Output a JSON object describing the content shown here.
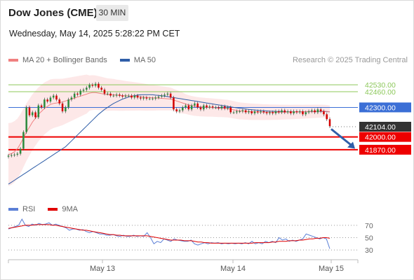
{
  "header": {
    "title": "Dow Jones (CME)",
    "timeframe": "30 MIN",
    "datetime": "Wednesday, May 14, 2025 5:28:22 PM CET"
  },
  "legend": {
    "ma20_label": "MA 20 + Bollinger Bands",
    "ma50_label": "MA 50",
    "credit": "Research © 2025 Trading Central"
  },
  "rsi_legend": {
    "rsi_label": "RSI",
    "ma9_label": "9MA"
  },
  "colors": {
    "ma20": "#f08080",
    "ma50": "#2f5ea8",
    "bollinger_fill": "#fde2e2",
    "green_level": "#8cc85a",
    "blue_level": "#3b6fd6",
    "red_level": "#ee0000",
    "current_price": "#333333",
    "rsi": "#5b7fd6",
    "rsi_ma": "#e00000",
    "arrow": "#2f5ea8"
  },
  "chart_data": [
    {
      "type": "candlestick",
      "title": "Dow Jones (CME)",
      "timeframe": "30 MIN",
      "x_ticks": [
        "May 13",
        "May 14",
        "May 15"
      ],
      "ylim": [
        41400,
        42680
      ],
      "levels": [
        {
          "value": 42530.0,
          "label": "42530.00",
          "kind": "resistance"
        },
        {
          "value": 42460.0,
          "label": "42460.00",
          "kind": "resistance"
        },
        {
          "value": 42300.0,
          "label": "42300.00",
          "kind": "pivot"
        },
        {
          "value": 42104.0,
          "label": "42104.00",
          "kind": "last-price"
        },
        {
          "value": 42000.0,
          "label": "42000.00",
          "kind": "support"
        },
        {
          "value": 41870.0,
          "label": "41870.00",
          "kind": "support"
        }
      ],
      "close": [
        41810,
        41815,
        41820,
        41830,
        41880,
        42050,
        42300,
        42220,
        42250,
        42200,
        42320,
        42300,
        42380,
        42360,
        42400,
        42420,
        42380,
        42340,
        42260,
        42300,
        42380,
        42400,
        42440,
        42430,
        42470,
        42480,
        42500,
        42530,
        42520,
        42540,
        42500,
        42480,
        42440,
        42440,
        42420,
        42420,
        42430,
        42420,
        42410,
        42420,
        42420,
        42400,
        42420,
        42400,
        42390,
        42400,
        42390,
        42390,
        42390,
        42400,
        42410,
        42420,
        42430,
        42440,
        42400,
        42280,
        42260,
        42270,
        42300,
        42320,
        42280,
        42320,
        42340,
        42300,
        42280,
        42320,
        42300,
        42310,
        42300,
        42300,
        42290,
        42310,
        42290,
        42300,
        42250,
        42250,
        42260,
        42260,
        42270,
        42250,
        42260,
        42240,
        42260,
        42250,
        42260,
        42250,
        42240,
        42250,
        42240,
        42260,
        42250,
        42270,
        42250,
        42260,
        42240,
        42260,
        42250,
        42260,
        42230,
        42250,
        42260,
        42270,
        42250,
        42280,
        42260,
        42230,
        42180,
        42110
      ],
      "ma20": [
        41820,
        41830,
        41850,
        41880,
        41930,
        41990,
        42050,
        42100,
        42150,
        42190,
        42230,
        42260,
        42290,
        42310,
        42330,
        42340,
        42345,
        42350,
        42355,
        42365,
        42375,
        42385,
        42395,
        42405,
        42415,
        42425,
        42435,
        42445,
        42450,
        42450,
        42445,
        42440,
        42435,
        42430,
        42430,
        42428,
        42425,
        42422,
        42420,
        42418,
        42416,
        42414,
        42412,
        42410,
        42408,
        42405,
        42402,
        42400,
        42398,
        42396,
        42395,
        42392,
        42390,
        42388,
        42385,
        42375,
        42365,
        42355,
        42345,
        42335,
        42325,
        42318,
        42312,
        42308,
        42305,
        42303,
        42301,
        42300,
        42298,
        42296,
        42294,
        42292,
        42290,
        42288,
        42282,
        42276,
        42270,
        42265,
        42262,
        42260,
        42258,
        42256,
        42255,
        42254,
        42253,
        42252,
        42252,
        42251,
        42251,
        42251,
        42251,
        42252,
        42252,
        42253,
        42253,
        42254,
        42255,
        42256,
        42256,
        42257,
        42258,
        42259,
        42260,
        42261,
        42262,
        42262,
        42260,
        42256
      ],
      "ma50": [
        41520,
        41540,
        41560,
        41580,
        41600,
        41620,
        41640,
        41660,
        41680,
        41700,
        41720,
        41740,
        41760,
        41780,
        41800,
        41820,
        41840,
        41860,
        41880,
        41900,
        41930,
        41960,
        41990,
        42020,
        42050,
        42080,
        42110,
        42140,
        42170,
        42200,
        42230,
        42255,
        42280,
        42300,
        42320,
        42340,
        42355,
        42370,
        42385,
        42395,
        42405,
        42415,
        42420,
        42425,
        42428,
        42430,
        42430,
        42430,
        42428,
        42425,
        42422,
        42418,
        42414,
        42410,
        42405,
        42400,
        42395,
        42390,
        42385,
        42380,
        42375,
        42370,
        42365,
        42360,
        42355,
        42350,
        42345,
        42340,
        42335,
        42330,
        42325,
        42320,
        42315,
        42310,
        42305,
        42300,
        42296,
        42292,
        42288,
        42284,
        42280,
        42277,
        42274,
        42271,
        42268,
        42266,
        42264,
        42262,
        42261,
        42260,
        42259,
        42258,
        42257,
        42256,
        42256,
        42255,
        42255,
        42255,
        42255,
        42256,
        42256,
        42257,
        42257,
        42258,
        42258,
        42258,
        42257,
        42255
      ]
    },
    {
      "type": "line",
      "title": "RSI",
      "yticks": [
        70,
        50,
        30
      ],
      "ylim": [
        20,
        80
      ],
      "series": [
        {
          "name": "RSI",
          "values": [
            64,
            66,
            68,
            70,
            80,
            70,
            68,
            72,
            70,
            73,
            71,
            72,
            74,
            70,
            72,
            70,
            68,
            66,
            62,
            64,
            64,
            62,
            63,
            60,
            58,
            60,
            58,
            56,
            56,
            54,
            54,
            55,
            53,
            52,
            54,
            52,
            52,
            54,
            52,
            53,
            52,
            58,
            50,
            40,
            44,
            42,
            48,
            46,
            44,
            48,
            46,
            45,
            44,
            44,
            46,
            40,
            38,
            40,
            42,
            40,
            42,
            41,
            42,
            40,
            41,
            40,
            41,
            40,
            41,
            40,
            42,
            40,
            44,
            40,
            42,
            40,
            44,
            42,
            44,
            42,
            50,
            46,
            48,
            44,
            46,
            44,
            46,
            48,
            56,
            54,
            52,
            50,
            48,
            50,
            48,
            32
          ]
        },
        {
          "name": "9MA",
          "values": [
            65,
            66,
            67,
            68,
            69,
            70,
            70,
            70,
            71,
            71,
            71,
            71,
            71,
            70,
            70,
            69,
            68,
            67,
            66,
            65,
            64,
            63,
            62,
            62,
            61,
            60,
            59,
            58,
            57,
            56,
            55,
            55,
            54,
            54,
            53,
            53,
            53,
            53,
            53,
            53,
            53,
            53,
            52,
            51,
            50,
            49,
            48,
            47,
            46,
            46,
            46,
            46,
            45,
            45,
            45,
            44,
            43,
            43,
            42,
            42,
            41,
            41,
            41,
            41,
            41,
            41,
            41,
            41,
            41,
            41,
            41,
            41,
            41,
            42,
            42,
            42,
            42,
            42,
            43,
            43,
            44,
            44,
            44,
            45,
            45,
            45,
            46,
            46,
            47,
            48,
            48,
            49,
            49,
            50,
            50,
            49
          ]
        }
      ]
    }
  ]
}
